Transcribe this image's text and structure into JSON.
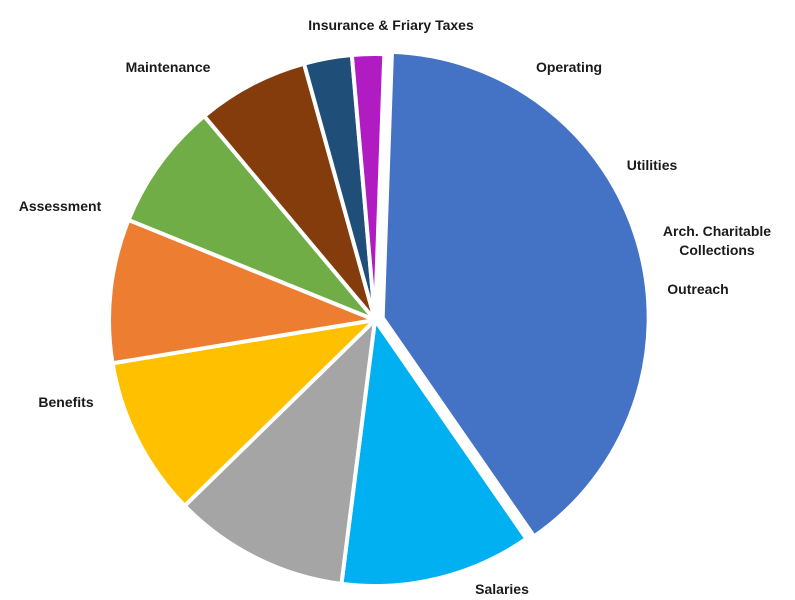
{
  "chart_data": {
    "type": "pie",
    "title": "",
    "categories": [
      "Salaries",
      "Benefits",
      "Assessment",
      "Maintenance",
      "Insurance & Friary Taxes",
      "Operating",
      "Utilities",
      "Arch. Charitable Collections",
      "Outreach"
    ],
    "values": [
      41,
      12,
      11,
      10,
      9,
      8,
      7,
      3,
      2
    ],
    "unit": "%",
    "colors": [
      "#4472C4",
      "#00B0F0",
      "#A5A5A5",
      "#FFC000",
      "#ED7D31",
      "#70AD47",
      "#843C0C",
      "#1F4E79",
      "#B01CC2"
    ],
    "start_angle_deg": 2,
    "direction": "clockwise",
    "exploded": [
      "Salaries"
    ],
    "legend": "none",
    "labels": [
      {
        "lines": [
          "Salaries"
        ]
      },
      {
        "lines": [
          "Benefits"
        ]
      },
      {
        "lines": [
          "Assessment"
        ]
      },
      {
        "lines": [
          "Maintenance"
        ]
      },
      {
        "lines": [
          "Insurance & Friary Taxes"
        ]
      },
      {
        "lines": [
          "Operating"
        ]
      },
      {
        "lines": [
          "Utilities"
        ]
      },
      {
        "lines": [
          "Arch. Charitable",
          "Collections"
        ]
      },
      {
        "lines": [
          "Outreach"
        ]
      }
    ]
  }
}
